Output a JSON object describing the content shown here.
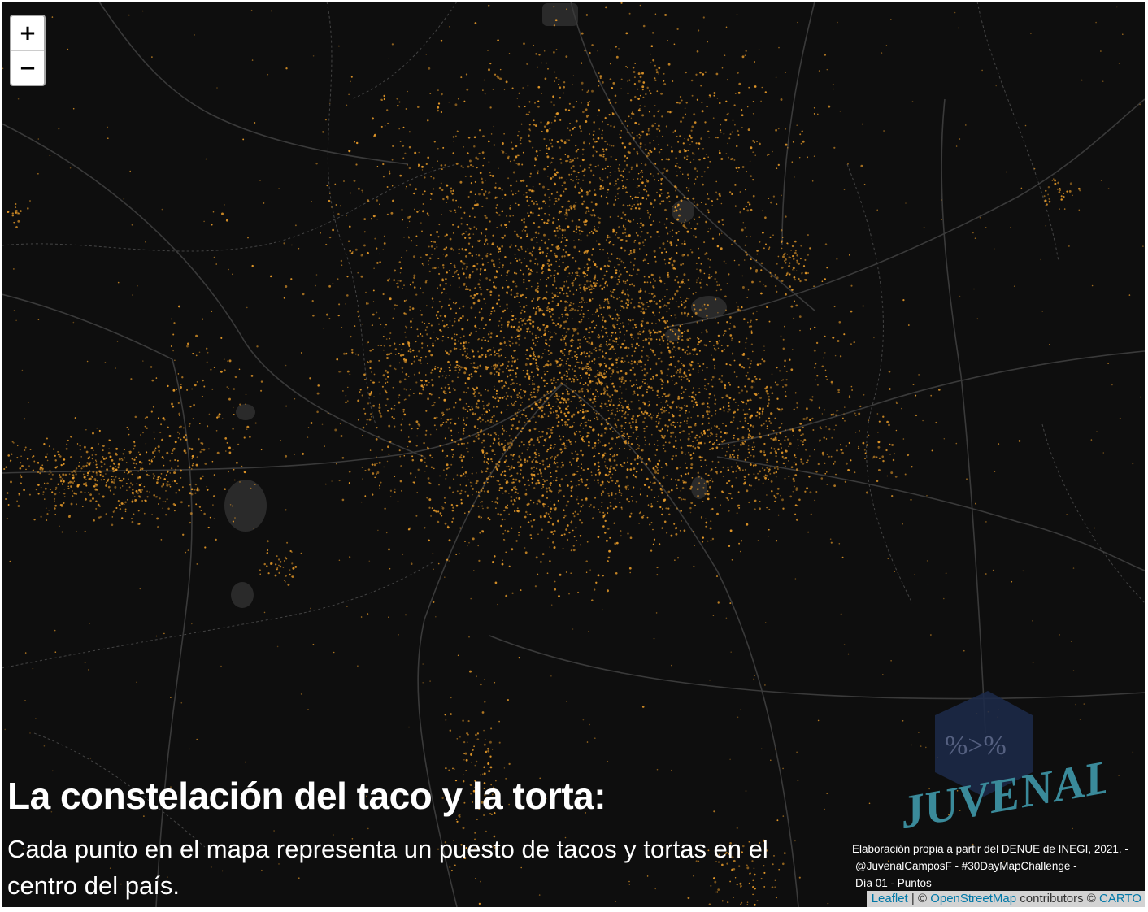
{
  "map": {
    "background": "#0e0e0e",
    "point_color": "#f0a02a",
    "zoom_in_label": "+",
    "zoom_out_label": "−"
  },
  "title": "La constelación del taco y la torta:",
  "subtitle": "Cada punto en el mapa representa un puesto de tacos y tortas en el centro del país.",
  "credit": {
    "line1": "Elaboración propia a partir del DENUE de INEGI, 2021. -",
    "line2": "@JuvenalCamposF - #30DayMapChallenge -",
    "line3": "Día 01 - Puntos"
  },
  "attribution": {
    "leaflet": "Leaflet",
    "separator": " | © ",
    "osm": "OpenStreetMap",
    "contributors": " contributors © ",
    "carto": "CARTO"
  },
  "logo": {
    "text": "JUVENAL",
    "symbol": "%>%",
    "color": "#3a8a9a"
  }
}
